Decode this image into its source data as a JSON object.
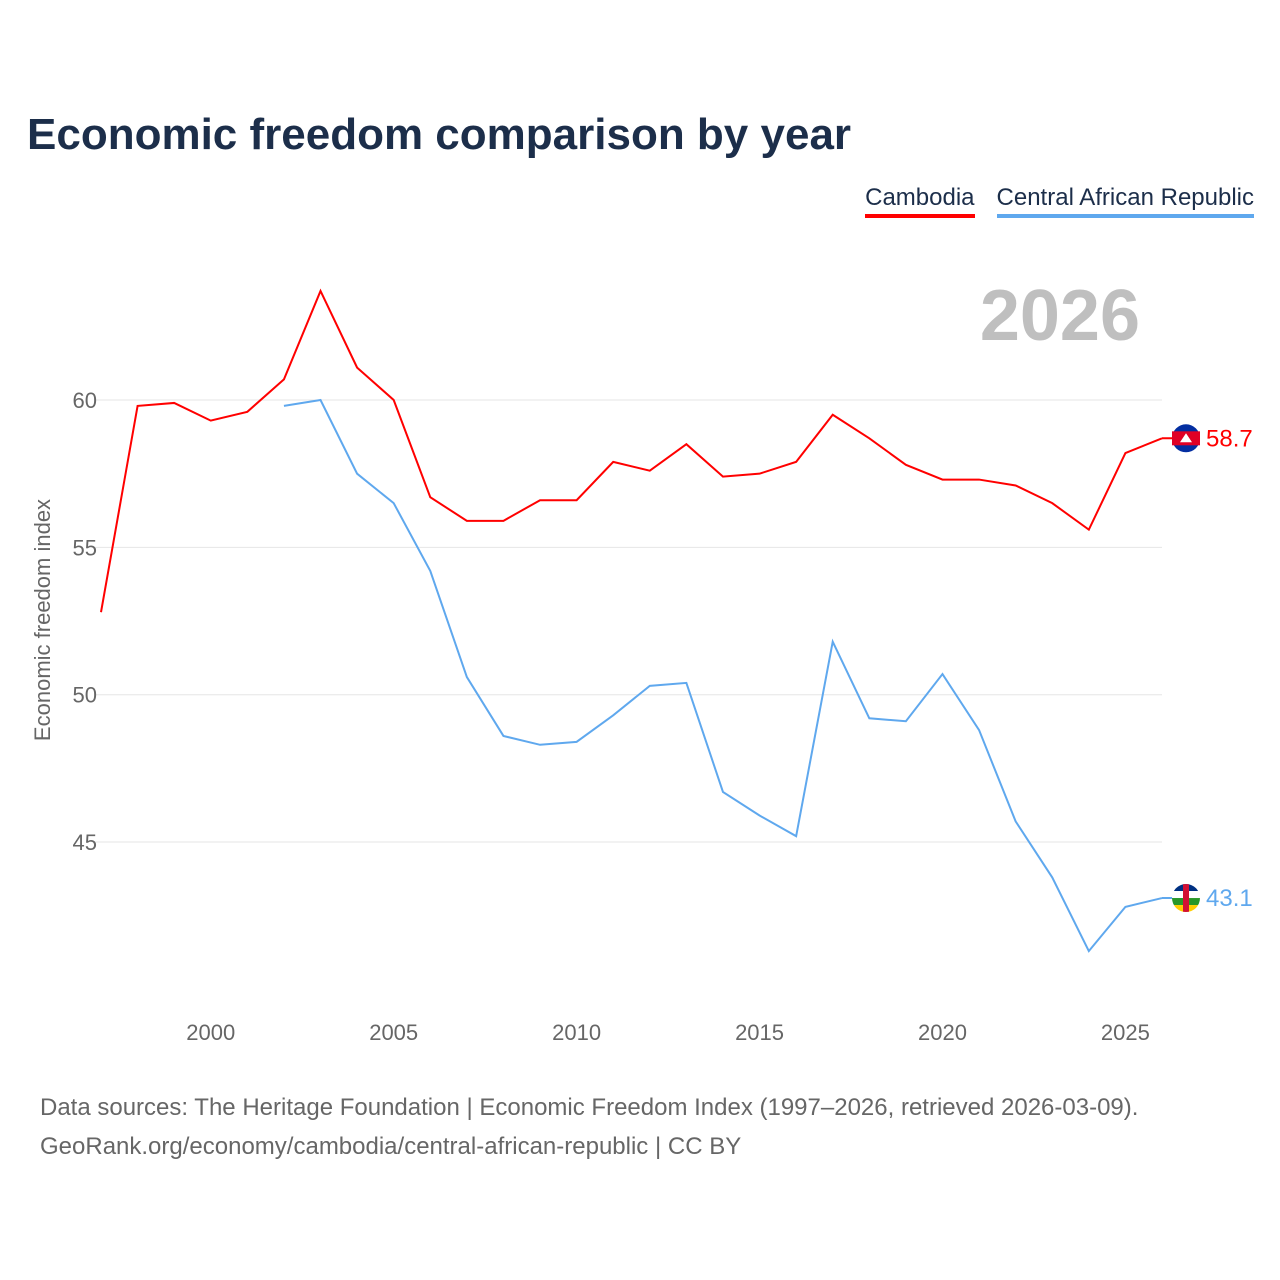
{
  "title": "Economic freedom comparison by year",
  "footer": {
    "line1": "Data sources: The Heritage Foundation | Economic Freedom Index (1997–2026, retrieved 2026-03-09).",
    "line2": "GeoRank.org/economy/cambodia/central-african-republic | CC BY"
  },
  "chart_data": {
    "type": "line",
    "title": "Economic freedom comparison by year",
    "xlabel": "",
    "ylabel": "Economic freedom index",
    "year_label": "2026",
    "xlim": [
      1997,
      2026
    ],
    "ylim": [
      39.3,
      64.8
    ],
    "x_ticks": [
      2000,
      2005,
      2010,
      2015,
      2020,
      2025
    ],
    "y_ticks": [
      45,
      50,
      55,
      60
    ],
    "grid": true,
    "legend_position": "top-right",
    "series": [
      {
        "name": "Cambodia",
        "color": "#ff0000",
        "end_label": "58.7",
        "x": [
          1997,
          1998,
          1999,
          2000,
          2001,
          2002,
          2003,
          2004,
          2005,
          2006,
          2007,
          2008,
          2009,
          2010,
          2011,
          2012,
          2013,
          2014,
          2015,
          2016,
          2017,
          2018,
          2019,
          2020,
          2021,
          2022,
          2023,
          2024,
          2025,
          2026
        ],
        "values": [
          52.8,
          59.8,
          59.9,
          59.3,
          59.6,
          60.7,
          63.7,
          61.1,
          60.0,
          56.7,
          55.9,
          55.9,
          56.6,
          56.6,
          57.9,
          57.6,
          58.5,
          57.4,
          57.5,
          57.9,
          59.5,
          58.7,
          57.8,
          57.3,
          57.3,
          57.1,
          56.5,
          55.6,
          58.2,
          58.7
        ]
      },
      {
        "name": "Central African Republic",
        "color": "#5fa8ee",
        "end_label": "43.1",
        "x": [
          2002,
          2003,
          2004,
          2005,
          2006,
          2007,
          2008,
          2009,
          2010,
          2011,
          2012,
          2013,
          2014,
          2015,
          2016,
          2017,
          2018,
          2019,
          2020,
          2021,
          2022,
          2023,
          2024,
          2025,
          2026
        ],
        "values": [
          59.8,
          60.0,
          57.5,
          56.5,
          54.2,
          50.6,
          48.6,
          48.3,
          48.4,
          49.3,
          50.3,
          50.4,
          46.7,
          45.9,
          45.2,
          51.8,
          49.2,
          49.1,
          50.7,
          48.8,
          45.7,
          43.8,
          41.3,
          42.8,
          43.1
        ]
      }
    ]
  }
}
